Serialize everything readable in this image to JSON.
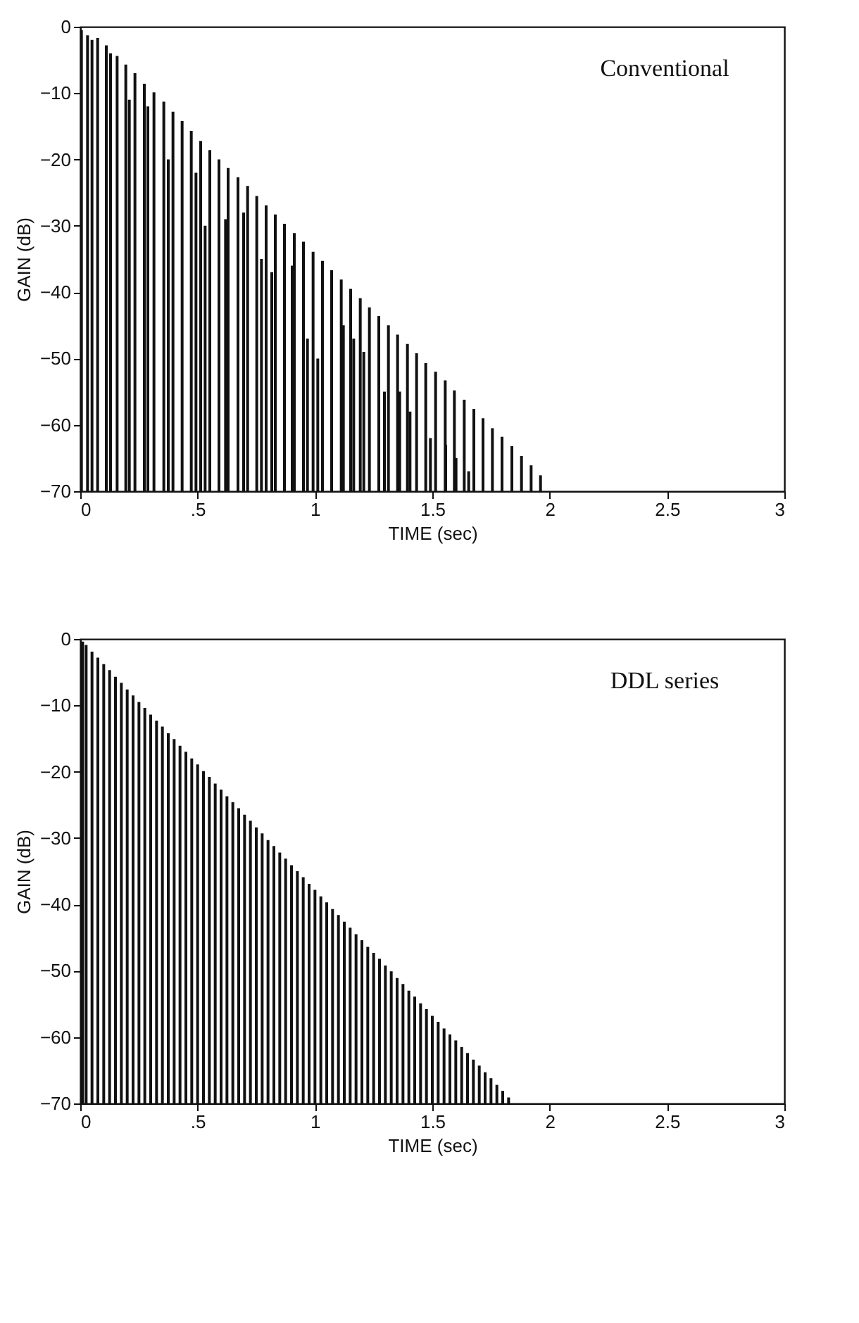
{
  "chart_data": [
    {
      "type": "bar",
      "annotations": [
        "Conventional"
      ],
      "xlabel": "TIME (sec)",
      "ylabel": "GAIN (dB)",
      "color": "#111111",
      "grid": false,
      "xlim": [
        0,
        3
      ],
      "ylim": [
        -70,
        0
      ],
      "xticks": [
        0,
        {
          "value": 0.5,
          "label": ".5"
        },
        1,
        1.5,
        2,
        2.5,
        3
      ],
      "yticks": [
        -70,
        -60,
        -50,
        -40,
        -30,
        -20,
        -10,
        0
      ],
      "x": [
        0.005,
        0.031,
        0.05,
        0.074,
        0.111,
        0.129,
        0.157,
        0.194,
        0.209,
        0.233,
        0.273,
        0.288,
        0.314,
        0.356,
        0.375,
        0.395,
        0.434,
        0.473,
        0.493,
        0.513,
        0.532,
        0.552,
        0.591,
        0.619,
        0.63,
        0.672,
        0.696,
        0.713,
        0.752,
        0.772,
        0.792,
        0.816,
        0.831,
        0.87,
        0.903,
        0.912,
        0.951,
        0.968,
        0.992,
        1.012,
        1.032,
        1.071,
        1.112,
        1.121,
        1.152,
        1.165,
        1.193,
        1.208,
        1.232,
        1.272,
        1.296,
        1.313,
        1.352,
        1.361,
        1.394,
        1.405,
        1.433,
        1.472,
        1.492,
        1.514,
        1.555,
        1.557,
        1.594,
        1.601,
        1.636,
        1.655,
        1.677,
        1.716,
        1.756,
        1.797,
        1.839,
        1.88,
        1.921,
        1.961
      ],
      "base": [
        -70,
        -70,
        -70,
        -70,
        -70,
        -70,
        -70,
        -70,
        -70,
        -70,
        -70,
        -70,
        -70,
        -70,
        -70,
        -70,
        -70,
        -70,
        -70,
        -70,
        -70,
        -70,
        -70,
        -70,
        -70,
        -70,
        -70,
        -70,
        -70,
        -70,
        -70,
        -70,
        -70,
        -70,
        -70,
        -70,
        -70,
        -70,
        -70,
        -70,
        -70,
        -70,
        -70,
        -70,
        -70,
        -70,
        -70,
        -70,
        -70,
        -70,
        -70,
        -70,
        -70,
        -70,
        -70,
        -70,
        -70,
        -70,
        -70,
        -70,
        -70,
        -70,
        -70,
        -70,
        -70,
        -70,
        -70,
        -70,
        -70,
        -70,
        -70,
        -70,
        -70,
        -70
      ],
      "values": [
        69.5,
        68.7,
        68,
        68.3,
        67.2,
        66,
        65.6,
        64.3,
        59,
        63,
        61.4,
        58,
        60.1,
        58.7,
        50,
        57.2,
        55.8,
        54.3,
        48,
        52.8,
        40,
        51.4,
        50,
        41,
        48.7,
        47.3,
        42,
        46,
        44.5,
        35,
        43.1,
        33,
        41.7,
        40.3,
        34,
        38.9,
        37.6,
        23,
        36.1,
        20,
        34.7,
        33.3,
        31.9,
        25,
        30.5,
        23,
        29.1,
        21,
        27.7,
        26.4,
        15,
        25,
        23.6,
        15,
        22.2,
        12,
        20.8,
        19.3,
        8,
        18,
        16.7,
        7,
        15.2,
        5,
        13.8,
        3,
        12.4,
        11,
        9.5,
        8.2,
        6.8,
        5.3,
        3.9,
        2.4
      ]
    },
    {
      "type": "bar",
      "annotations": [
        "DDL series"
      ],
      "xlabel": "TIME (sec)",
      "ylabel": "GAIN (dB)",
      "color": "#111111",
      "grid": false,
      "xlim": [
        0,
        3
      ],
      "ylim": [
        -70,
        0
      ],
      "xticks": [
        0,
        {
          "value": 0.5,
          "label": ".5"
        },
        1,
        1.5,
        2,
        2.5,
        3
      ],
      "yticks": [
        -70,
        -60,
        -50,
        -40,
        -30,
        -20,
        -10,
        0
      ],
      "x": [
        0.01,
        0.025,
        0.05,
        0.075,
        0.1,
        0.125,
        0.15,
        0.175,
        0.2,
        0.225,
        0.25,
        0.275,
        0.3,
        0.325,
        0.35,
        0.375,
        0.4,
        0.425,
        0.45,
        0.475,
        0.5,
        0.525,
        0.55,
        0.575,
        0.6,
        0.625,
        0.65,
        0.675,
        0.7,
        0.725,
        0.75,
        0.775,
        0.8,
        0.825,
        0.85,
        0.875,
        0.9,
        0.925,
        0.95,
        0.975,
        1.0,
        1.025,
        1.05,
        1.075,
        1.1,
        1.125,
        1.15,
        1.175,
        1.2,
        1.225,
        1.25,
        1.275,
        1.3,
        1.325,
        1.35,
        1.375,
        1.4,
        1.425,
        1.45,
        1.475,
        1.5,
        1.525,
        1.55,
        1.575,
        1.6,
        1.625,
        1.65,
        1.675,
        1.7,
        1.725,
        1.75,
        1.775,
        1.8,
        1.825
      ],
      "base": [
        -70,
        -70,
        -70,
        -70,
        -70,
        -70,
        -70,
        -70,
        -70,
        -70,
        -70,
        -70,
        -70,
        -70,
        -70,
        -70,
        -70,
        -70,
        -70,
        -70,
        -70,
        -70,
        -70,
        -70,
        -70,
        -70,
        -70,
        -70,
        -70,
        -70,
        -70,
        -70,
        -70,
        -70,
        -70,
        -70,
        -70,
        -70,
        -70,
        -70,
        -70,
        -70,
        -70,
        -70,
        -70,
        -70,
        -70,
        -70,
        -70,
        -70,
        -70,
        -70,
        -70,
        -70,
        -70,
        -70,
        -70,
        -70,
        -70,
        -70,
        -70,
        -70,
        -70,
        -70,
        -70,
        -70,
        -70,
        -70,
        -70,
        -70,
        -70,
        -70,
        -70,
        -70
      ],
      "values": [
        69.6,
        69.1,
        68.1,
        67.2,
        66.2,
        65.3,
        64.3,
        63.4,
        62.4,
        61.5,
        60.5,
        59.6,
        58.6,
        57.7,
        56.8,
        55.8,
        54.9,
        53.9,
        53.0,
        52.0,
        51.1,
        50.1,
        49.2,
        48.2,
        47.3,
        46.3,
        45.4,
        44.5,
        43.5,
        42.6,
        41.6,
        40.7,
        39.7,
        38.8,
        37.8,
        36.9,
        35.9,
        35.0,
        34.1,
        33.1,
        32.2,
        31.2,
        30.3,
        29.3,
        28.4,
        27.4,
        26.5,
        25.5,
        24.6,
        23.6,
        22.7,
        21.8,
        20.8,
        19.9,
        18.9,
        18.0,
        17.0,
        16.1,
        15.1,
        14.2,
        13.2,
        12.3,
        11.3,
        10.4,
        9.5,
        8.5,
        7.6,
        6.6,
        5.7,
        4.7,
        3.8,
        2.8,
        1.9,
        0.9
      ]
    }
  ]
}
